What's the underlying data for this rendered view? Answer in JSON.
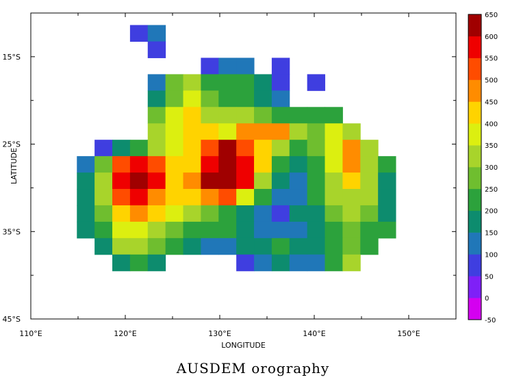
{
  "chart_data": {
    "type": "heatmap",
    "title": "AUSDEM orography",
    "xlabel": "LONGITUDE",
    "ylabel": "LATITUDE",
    "xlim": [
      110,
      155
    ],
    "ylim": [
      -45,
      -10
    ],
    "x_ticks": [
      {
        "value": 110,
        "label": "110°E"
      },
      {
        "value": 120,
        "label": "120°E"
      },
      {
        "value": 130,
        "label": "130°E"
      },
      {
        "value": 140,
        "label": "140°E"
      },
      {
        "value": 150,
        "label": "150°E"
      }
    ],
    "y_ticks": [
      {
        "value": -15,
        "label": "15°S"
      },
      {
        "value": -25,
        "label": "25°S"
      },
      {
        "value": -35,
        "label": "35°S"
      },
      {
        "value": -45,
        "label": "45°S"
      }
    ],
    "grid": {
      "lon_start": 113,
      "lat_start": -9.5,
      "cell_deg": 1.875,
      "cols": 22,
      "rows": 18,
      "missing_value": -9999,
      "values": [
        [
          -9999,
          -9999,
          -9999,
          -9999,
          -9999,
          -9999,
          -9999,
          -9999,
          -9999,
          -9999,
          -9999,
          -9999,
          -9999,
          -9999,
          -9999,
          -9999,
          -9999,
          -9999,
          -9999,
          -9999,
          -9999,
          -9999
        ],
        [
          -9999,
          -9999,
          -9999,
          -9999,
          50,
          100,
          -9999,
          -9999,
          -9999,
          -9999,
          -9999,
          -9999,
          -9999,
          -9999,
          -9999,
          -9999,
          -9999,
          -9999,
          -9999,
          -9999,
          -9999,
          -9999
        ],
        [
          -9999,
          -9999,
          -9999,
          -9999,
          -9999,
          50,
          -9999,
          -9999,
          -9999,
          -9999,
          -9999,
          -9999,
          -9999,
          -9999,
          -9999,
          -9999,
          -9999,
          -9999,
          -9999,
          -9999,
          -9999,
          -9999
        ],
        [
          -9999,
          -9999,
          -9999,
          -9999,
          -9999,
          -9999,
          -9999,
          -9999,
          50,
          100,
          100,
          -9999,
          50,
          -9999,
          -9999,
          -9999,
          -9999,
          -9999,
          -9999,
          -9999,
          -9999,
          -9999
        ],
        [
          -9999,
          -9999,
          -9999,
          -9999,
          -9999,
          100,
          250,
          300,
          200,
          200,
          200,
          150,
          50,
          -9999,
          50,
          -9999,
          -9999,
          -9999,
          -9999,
          -9999,
          -9999,
          -9999
        ],
        [
          -9999,
          -9999,
          -9999,
          -9999,
          -9999,
          150,
          250,
          350,
          250,
          200,
          200,
          150,
          100,
          -9999,
          -9999,
          -9999,
          -9999,
          -9999,
          -9999,
          -9999,
          -9999,
          -9999
        ],
        [
          -9999,
          -9999,
          -9999,
          -9999,
          -9999,
          250,
          350,
          400,
          300,
          300,
          300,
          250,
          200,
          200,
          200,
          200,
          -9999,
          -9999,
          -9999,
          -9999,
          -9999,
          -9999
        ],
        [
          -9999,
          -9999,
          -9999,
          -9999,
          -9999,
          300,
          350,
          400,
          400,
          350,
          450,
          450,
          450,
          300,
          250,
          350,
          300,
          -9999,
          -9999,
          -9999,
          -9999,
          -9999
        ],
        [
          -9999,
          -9999,
          50,
          150,
          200,
          300,
          350,
          400,
          500,
          600,
          500,
          400,
          300,
          200,
          250,
          350,
          450,
          300,
          -9999,
          -9999,
          -9999,
          -9999
        ],
        [
          -9999,
          100,
          250,
          500,
          550,
          500,
          400,
          400,
          550,
          650,
          550,
          400,
          200,
          150,
          200,
          350,
          450,
          300,
          200,
          -9999,
          -9999,
          -9999
        ],
        [
          -9999,
          150,
          300,
          550,
          600,
          550,
          400,
          450,
          600,
          600,
          550,
          300,
          150,
          100,
          200,
          300,
          400,
          300,
          150,
          -9999,
          -9999,
          -9999
        ],
        [
          -9999,
          150,
          300,
          500,
          550,
          450,
          400,
          400,
          450,
          500,
          350,
          200,
          100,
          100,
          200,
          300,
          300,
          300,
          150,
          -9999,
          -9999,
          -9999
        ],
        [
          -9999,
          150,
          250,
          400,
          450,
          400,
          350,
          300,
          250,
          200,
          150,
          100,
          50,
          150,
          150,
          250,
          300,
          250,
          150,
          -9999,
          -9999,
          -9999
        ],
        [
          -9999,
          150,
          200,
          350,
          350,
          300,
          250,
          200,
          200,
          200,
          150,
          100,
          100,
          100,
          150,
          200,
          250,
          200,
          200,
          -9999,
          -9999,
          -9999
        ],
        [
          -9999,
          -9999,
          150,
          300,
          300,
          250,
          200,
          150,
          100,
          100,
          150,
          150,
          200,
          150,
          150,
          200,
          250,
          200,
          -9999,
          -9999,
          -9999,
          -9999
        ],
        [
          -9999,
          -9999,
          -9999,
          150,
          200,
          150,
          -9999,
          -9999,
          -9999,
          -9999,
          50,
          100,
          150,
          100,
          100,
          200,
          300,
          -9999,
          -9999,
          -9999,
          -9999,
          -9999
        ],
        [
          -9999,
          -9999,
          -9999,
          -9999,
          -9999,
          -9999,
          -9999,
          -9999,
          -9999,
          -9999,
          -9999,
          -9999,
          -9999,
          -9999,
          -9999,
          -9999,
          -9999,
          -9999,
          -9999,
          -9999,
          -9999,
          -9999
        ],
        [
          -9999,
          -9999,
          -9999,
          -9999,
          -9999,
          -9999,
          -9999,
          -9999,
          -9999,
          -9999,
          -9999,
          -9999,
          -9999,
          -9999,
          -9999,
          -9999,
          -9999,
          -9999,
          -9999,
          -9999,
          -9999,
          -9999
        ]
      ]
    },
    "colorbar": {
      "levels": [
        -50,
        0,
        50,
        100,
        150,
        200,
        250,
        300,
        350,
        400,
        450,
        500,
        550,
        600,
        650
      ],
      "colors": [
        "#d400f0",
        "#7f20f7",
        "#3f3ee0",
        "#2077b8",
        "#0d8c6e",
        "#2ca23c",
        "#6fbe2f",
        "#a8d42b",
        "#dcef10",
        "#ffd300",
        "#ff8c00",
        "#ff4c00",
        "#ef0000",
        "#a00000"
      ]
    },
    "legend_placement": "right"
  }
}
